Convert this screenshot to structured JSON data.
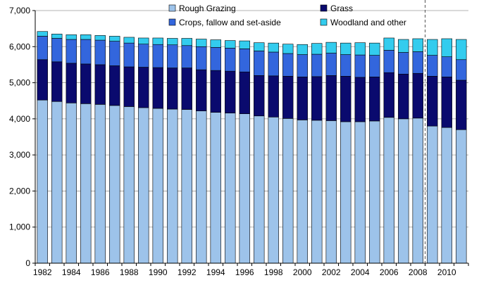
{
  "chart_data": {
    "type": "bar",
    "stacked": true,
    "title": "",
    "xlabel": "",
    "ylabel": "",
    "ylim": [
      0,
      7000
    ],
    "y_ticks": [
      0,
      1000,
      2000,
      3000,
      4000,
      5000,
      6000,
      7000
    ],
    "y_tick_labels": [
      "0",
      "1,000",
      "2,000",
      "3,000",
      "4,000",
      "5,000",
      "6,000",
      "7,000"
    ],
    "categories": [
      1982,
      1983,
      1984,
      1985,
      1986,
      1987,
      1988,
      1989,
      1990,
      1991,
      1992,
      1993,
      1994,
      1995,
      1996,
      1997,
      1998,
      1999,
      2000,
      2001,
      2002,
      2003,
      2004,
      2005,
      2006,
      2007,
      2008,
      2009,
      2010,
      2011
    ],
    "x_tick_labels": [
      "1982",
      "1984",
      "1986",
      "1988",
      "1990",
      "1992",
      "1994",
      "1996",
      "1998",
      "2000",
      "2002",
      "2004",
      "2006",
      "2008",
      "2010"
    ],
    "break_after_category": 2008,
    "legend_position": "top-center",
    "series": [
      {
        "name": "Rough Grazing",
        "color": "#9dc3ea",
        "values": [
          4520,
          4480,
          4440,
          4420,
          4400,
          4370,
          4340,
          4310,
          4290,
          4270,
          4260,
          4220,
          4180,
          4160,
          4140,
          4080,
          4050,
          4010,
          3970,
          3960,
          3950,
          3920,
          3920,
          3940,
          4040,
          4000,
          4020,
          3800,
          3760,
          3700
        ]
      },
      {
        "name": "Grass",
        "color": "#0a0a6e",
        "values": [
          1120,
          1100,
          1100,
          1100,
          1100,
          1100,
          1100,
          1120,
          1130,
          1140,
          1150,
          1140,
          1160,
          1160,
          1160,
          1120,
          1140,
          1170,
          1190,
          1210,
          1250,
          1260,
          1230,
          1220,
          1240,
          1240,
          1240,
          1380,
          1400,
          1370
        ]
      },
      {
        "name": "Crops, fallow and set-aside",
        "color": "#3366dd",
        "values": [
          650,
          650,
          660,
          680,
          680,
          680,
          660,
          640,
          640,
          640,
          620,
          640,
          640,
          640,
          640,
          680,
          660,
          630,
          620,
          620,
          620,
          600,
          620,
          600,
          620,
          600,
          600,
          580,
          560,
          570
        ]
      },
      {
        "name": "Woodland and other",
        "color": "#33ccee",
        "values": [
          130,
          120,
          130,
          130,
          130,
          140,
          160,
          170,
          180,
          180,
          200,
          210,
          210,
          210,
          220,
          230,
          250,
          260,
          280,
          300,
          300,
          320,
          340,
          340,
          340,
          360,
          360,
          440,
          500,
          560
        ]
      }
    ]
  }
}
